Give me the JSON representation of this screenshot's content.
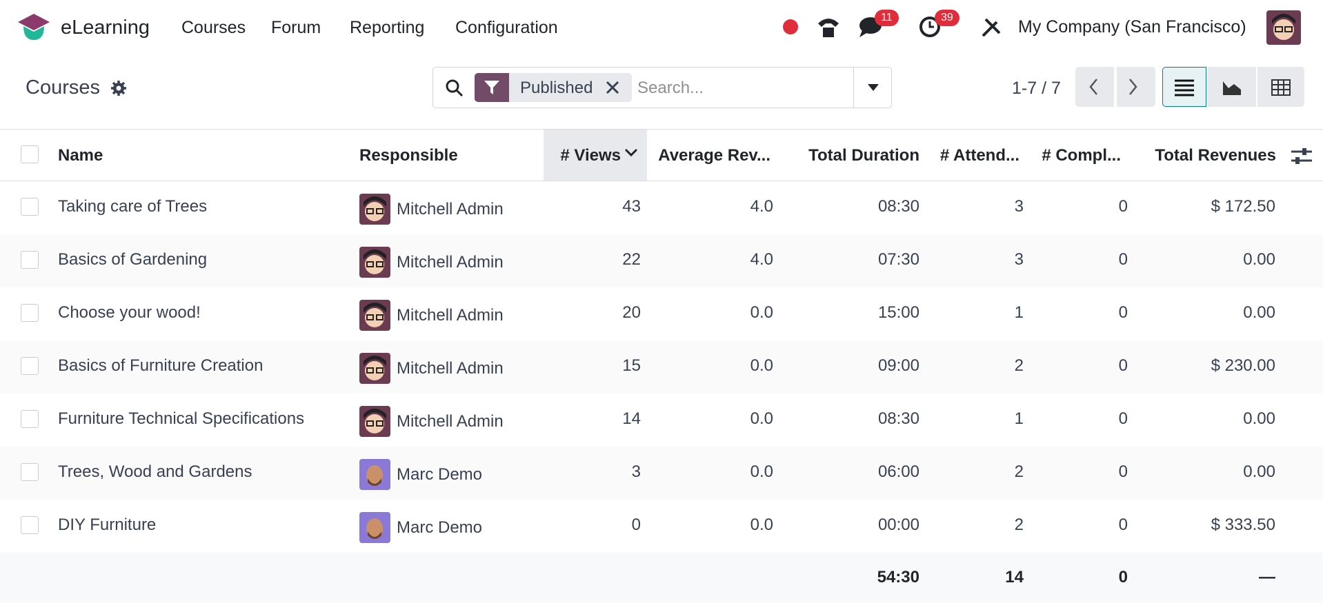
{
  "navbar": {
    "app_name": "eLearning",
    "menu": [
      "Courses",
      "Forum",
      "Reporting",
      "Configuration"
    ],
    "messages_badge": "11",
    "activities_badge": "39",
    "company": "My Company (San Francisco)"
  },
  "control_panel": {
    "breadcrumb": "Courses",
    "facet": "Published",
    "search_placeholder": "Search...",
    "pager": "1-7 / 7"
  },
  "table": {
    "headers": [
      "Name",
      "Responsible",
      "# Views",
      "Average Rev...",
      "Total Duration",
      "# Attend...",
      "# Compl...",
      "Total Revenues"
    ],
    "rows": [
      [
        "Taking care of Trees",
        "Mitchell Admin",
        "43",
        "4.0",
        "08:30",
        "3",
        "0",
        "$ 172.50"
      ],
      [
        "Basics of Gardening",
        "Mitchell Admin",
        "22",
        "4.0",
        "07:30",
        "3",
        "0",
        "0.00"
      ],
      [
        "Choose your wood!",
        "Mitchell Admin",
        "20",
        "0.0",
        "15:00",
        "1",
        "0",
        "0.00"
      ],
      [
        "Basics of Furniture Creation",
        "Mitchell Admin",
        "15",
        "0.0",
        "09:00",
        "2",
        "0",
        "$ 230.00"
      ],
      [
        "Furniture Technical Specifications",
        "Mitchell Admin",
        "14",
        "0.0",
        "08:30",
        "1",
        "0",
        "0.00"
      ],
      [
        "Trees, Wood and Gardens",
        "Marc Demo",
        "3",
        "0.0",
        "06:00",
        "2",
        "0",
        "0.00"
      ],
      [
        "DIY Furniture",
        "Marc Demo",
        "0",
        "0.0",
        "00:00",
        "2",
        "0",
        "$ 333.50"
      ]
    ],
    "totals": [
      "54:30",
      "14",
      "0",
      "—"
    ]
  }
}
